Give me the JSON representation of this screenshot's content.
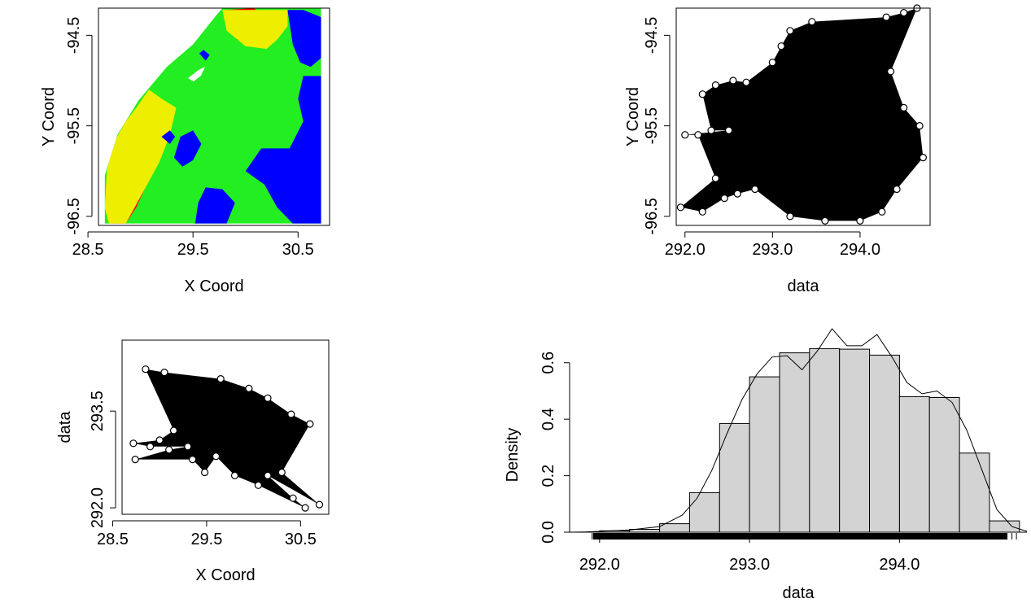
{
  "chart_data": [
    {
      "type": "heatmap",
      "panel": "top-left",
      "xlabel": "X Coord",
      "ylabel": "Y Coord",
      "xlim": [
        28.6,
        30.8
      ],
      "ylim": [
        -96.6,
        -94.2
      ],
      "xticks": [
        {
          "value": 28.5,
          "label": "28.5"
        },
        {
          "value": 29.5,
          "label": "29.5"
        },
        {
          "value": 30.5,
          "label": "30.5"
        }
      ],
      "yticks": [
        {
          "value": -94.5,
          "label": "-94.5"
        },
        {
          "value": -95.5,
          "label": "-95.5"
        },
        {
          "value": -96.5,
          "label": "-96.5"
        }
      ],
      "colors": [
        "#0000ff",
        "#22ee22",
        "#eeee00",
        "#ff0000"
      ],
      "regions": [
        {
          "color_index": 3,
          "points": [
            [
              28.72,
              -96.58
            ],
            [
              28.68,
              -96.2
            ],
            [
              28.74,
              -95.8
            ],
            [
              28.86,
              -95.55
            ],
            [
              29.04,
              -95.4
            ],
            [
              29.18,
              -95.45
            ],
            [
              29.22,
              -95.7
            ],
            [
              29.12,
              -95.95
            ],
            [
              29.04,
              -96.2
            ],
            [
              28.96,
              -96.4
            ],
            [
              28.86,
              -96.58
            ]
          ]
        },
        {
          "color_index": 2,
          "points": [
            [
              28.86,
              -96.58
            ],
            [
              29.04,
              -96.2
            ],
            [
              29.18,
              -95.9
            ],
            [
              29.28,
              -95.6
            ],
            [
              29.34,
              -95.3
            ],
            [
              29.2,
              -95.2
            ],
            [
              29.08,
              -95.1
            ],
            [
              28.96,
              -95.3
            ],
            [
              28.86,
              -95.45
            ],
            [
              28.74,
              -95.7
            ],
            [
              28.68,
              -96.0
            ],
            [
              28.66,
              -96.4
            ],
            [
              28.7,
              -96.58
            ]
          ]
        },
        {
          "color_index": 3,
          "points": [
            [
              29.82,
              -94.22
            ],
            [
              30.08,
              -94.2
            ],
            [
              30.2,
              -94.32
            ],
            [
              30.3,
              -94.55
            ],
            [
              30.12,
              -94.62
            ],
            [
              29.92,
              -94.55
            ],
            [
              29.82,
              -94.4
            ]
          ]
        },
        {
          "color_index": 2,
          "points": [
            [
              29.78,
              -94.22
            ],
            [
              29.82,
              -94.45
            ],
            [
              30.0,
              -94.62
            ],
            [
              30.2,
              -94.65
            ],
            [
              30.3,
              -94.55
            ],
            [
              30.4,
              -94.4
            ],
            [
              30.4,
              -94.22
            ]
          ]
        },
        {
          "color_index": 0,
          "points": [
            [
              30.4,
              -94.22
            ],
            [
              30.55,
              -94.22
            ],
            [
              30.72,
              -94.3
            ],
            [
              30.72,
              -94.75
            ],
            [
              30.62,
              -94.85
            ],
            [
              30.52,
              -94.8
            ],
            [
              30.45,
              -94.6
            ]
          ]
        },
        {
          "color_index": 0,
          "points": [
            [
              30.55,
              -94.95
            ],
            [
              30.72,
              -94.95
            ],
            [
              30.72,
              -96.58
            ],
            [
              30.45,
              -96.58
            ],
            [
              30.3,
              -96.4
            ],
            [
              30.18,
              -96.15
            ],
            [
              30.0,
              -96.0
            ],
            [
              30.15,
              -95.75
            ],
            [
              30.42,
              -95.75
            ],
            [
              30.55,
              -95.45
            ],
            [
              30.5,
              -95.2
            ]
          ]
        },
        {
          "color_index": 0,
          "points": [
            [
              29.52,
              -96.58
            ],
            [
              29.55,
              -96.35
            ],
            [
              29.62,
              -96.18
            ],
            [
              29.78,
              -96.2
            ],
            [
              29.9,
              -96.35
            ],
            [
              29.82,
              -96.58
            ]
          ]
        },
        {
          "color_index": 0,
          "points": [
            [
              29.32,
              -95.85
            ],
            [
              29.38,
              -95.62
            ],
            [
              29.5,
              -95.55
            ],
            [
              29.58,
              -95.7
            ],
            [
              29.5,
              -95.88
            ],
            [
              29.4,
              -95.95
            ]
          ]
        },
        {
          "color_index": 0,
          "points": [
            [
              29.2,
              -95.62
            ],
            [
              29.28,
              -95.55
            ],
            [
              29.33,
              -95.62
            ],
            [
              29.28,
              -95.7
            ]
          ]
        },
        {
          "color_index": 0,
          "points": [
            [
              29.56,
              -94.7
            ],
            [
              29.62,
              -94.78
            ],
            [
              29.66,
              -94.72
            ],
            [
              29.6,
              -94.66
            ]
          ]
        }
      ]
    },
    {
      "type": "scatter",
      "panel": "top-right",
      "xlabel": "data",
      "ylabel": "Y Coord",
      "xlim": [
        291.9,
        294.8
      ],
      "ylim": [
        -96.6,
        -94.2
      ],
      "xticks": [
        {
          "value": 292.0,
          "label": "292.0"
        },
        {
          "value": 293.0,
          "label": "293.0"
        },
        {
          "value": 294.0,
          "label": "294.0"
        }
      ],
      "yticks": [
        {
          "value": -94.5,
          "label": "-94.5"
        },
        {
          "value": -95.5,
          "label": "-95.5"
        },
        {
          "value": -96.5,
          "label": "-96.5"
        }
      ],
      "points": [
        [
          292.0,
          -95.6
        ],
        [
          291.95,
          -96.4
        ],
        [
          292.2,
          -95.15
        ],
        [
          292.35,
          -95.05
        ],
        [
          292.55,
          -95.0
        ],
        [
          292.7,
          -95.02
        ],
        [
          292.35,
          -96.08
        ],
        [
          292.2,
          -96.45
        ],
        [
          292.45,
          -96.3
        ],
        [
          292.6,
          -96.25
        ],
        [
          292.8,
          -96.2
        ],
        [
          292.5,
          -95.55
        ],
        [
          292.3,
          -95.55
        ],
        [
          292.15,
          -95.6
        ],
        [
          293.0,
          -94.8
        ],
        [
          293.1,
          -94.62
        ],
        [
          293.2,
          -94.45
        ],
        [
          293.45,
          -94.35
        ],
        [
          294.3,
          -94.3
        ],
        [
          294.5,
          -94.25
        ],
        [
          294.65,
          -94.2
        ],
        [
          294.72,
          -95.85
        ],
        [
          294.68,
          -95.5
        ],
        [
          294.5,
          -95.3
        ],
        [
          294.42,
          -96.2
        ],
        [
          294.25,
          -96.45
        ],
        [
          294.35,
          -94.9
        ],
        [
          293.2,
          -96.5
        ],
        [
          293.6,
          -96.55
        ],
        [
          294.0,
          -96.55
        ]
      ]
    },
    {
      "type": "scatter",
      "panel": "bottom-left",
      "xlabel": "X Coord",
      "ylabel": "data",
      "xlim": [
        28.6,
        30.8
      ],
      "ylim": [
        291.9,
        294.6
      ],
      "xticks": [
        {
          "value": 28.5,
          "label": "28.5"
        },
        {
          "value": 29.5,
          "label": "29.5"
        },
        {
          "value": 30.5,
          "label": "30.5"
        }
      ],
      "yticks": [
        {
          "value": 292.0,
          "label": "292.0"
        },
        {
          "value": 293.5,
          "label": "293.5"
        }
      ],
      "points": [
        [
          28.72,
          293.0
        ],
        [
          28.74,
          292.75
        ],
        [
          28.9,
          292.95
        ],
        [
          29.0,
          293.05
        ],
        [
          29.1,
          292.9
        ],
        [
          29.15,
          293.2
        ],
        [
          29.3,
          292.95
        ],
        [
          29.35,
          292.75
        ],
        [
          29.48,
          292.55
        ],
        [
          29.6,
          292.8
        ],
        [
          29.8,
          292.5
        ],
        [
          30.05,
          292.35
        ],
        [
          30.15,
          292.5
        ],
        [
          30.3,
          292.55
        ],
        [
          30.42,
          292.15
        ],
        [
          30.55,
          292.0
        ],
        [
          30.7,
          292.05
        ],
        [
          28.85,
          294.15
        ],
        [
          29.05,
          294.1
        ],
        [
          29.65,
          294.0
        ],
        [
          29.95,
          293.85
        ],
        [
          30.15,
          293.7
        ],
        [
          30.4,
          293.45
        ],
        [
          30.6,
          293.3
        ]
      ]
    },
    {
      "type": "histogram",
      "panel": "bottom-right",
      "xlabel": "data",
      "ylabel": "Density",
      "xlim": [
        291.8,
        294.85
      ],
      "ylim": [
        0,
        0.68
      ],
      "xticks": [
        {
          "value": 292.0,
          "label": "292.0"
        },
        {
          "value": 293.0,
          "label": "293.0"
        },
        {
          "value": 294.0,
          "label": "294.0"
        }
      ],
      "yticks": [
        {
          "value": 0.0,
          "label": "0.0"
        },
        {
          "value": 0.2,
          "label": "0.2"
        },
        {
          "value": 0.4,
          "label": "0.4"
        },
        {
          "value": 0.6,
          "label": "0.6"
        }
      ],
      "bins": [
        292.0,
        292.2,
        292.4,
        292.6,
        292.8,
        293.0,
        293.2,
        293.4,
        293.6,
        293.8,
        294.0,
        294.2,
        294.4,
        294.6,
        294.8
      ],
      "density": [
        0.005,
        0.01,
        0.03,
        0.14,
        0.385,
        0.55,
        0.635,
        0.65,
        0.648,
        0.627,
        0.48,
        0.477,
        0.28,
        0.04
      ],
      "density_curve": [
        [
          291.8,
          0.0
        ],
        [
          291.9,
          0.001
        ],
        [
          292.0,
          0.003
        ],
        [
          292.2,
          0.008
        ],
        [
          292.4,
          0.02
        ],
        [
          292.55,
          0.06
        ],
        [
          292.65,
          0.12
        ],
        [
          292.75,
          0.22
        ],
        [
          292.85,
          0.35
        ],
        [
          292.95,
          0.47
        ],
        [
          293.05,
          0.56
        ],
        [
          293.15,
          0.62
        ],
        [
          293.25,
          0.625
        ],
        [
          293.35,
          0.575
        ],
        [
          293.45,
          0.64
        ],
        [
          293.55,
          0.72
        ],
        [
          293.65,
          0.66
        ],
        [
          293.75,
          0.66
        ],
        [
          293.85,
          0.7
        ],
        [
          293.95,
          0.62
        ],
        [
          294.05,
          0.53
        ],
        [
          294.15,
          0.49
        ],
        [
          294.25,
          0.5
        ],
        [
          294.35,
          0.46
        ],
        [
          294.45,
          0.36
        ],
        [
          294.55,
          0.22
        ],
        [
          294.65,
          0.08
        ],
        [
          294.75,
          0.02
        ],
        [
          294.85,
          0.003
        ]
      ],
      "rug": true
    }
  ]
}
